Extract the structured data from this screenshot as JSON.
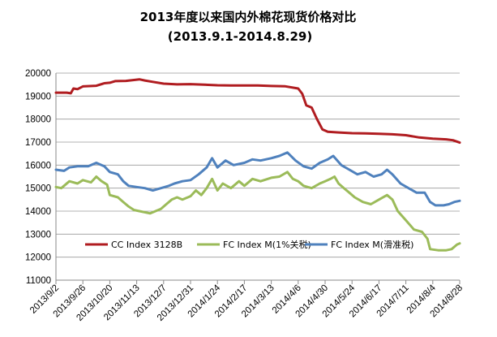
{
  "chart_data": {
    "type": "line",
    "title": "2013年度以来国内外棉花现货价格对比",
    "subtitle": "(2013.9.1-2014.8.29)",
    "xlabel": "",
    "ylabel": "",
    "ylim": [
      11000,
      20000
    ],
    "yticks": [
      11000,
      12000,
      13000,
      14000,
      15000,
      16000,
      17000,
      18000,
      19000,
      20000
    ],
    "categories": [
      "2013/9/2",
      "2013/9/26",
      "2013/10/20",
      "2013/11/13",
      "2013/12/7",
      "2013/12/31",
      "2014/1/24",
      "2014/2/17",
      "2014/3/13",
      "2014/4/6",
      "2014/4/30",
      "2014/5/24",
      "2014/6/17",
      "2014/7/11",
      "2014/8/4",
      "2014/8/28"
    ],
    "grid": true,
    "legend_position": "bottom-inside",
    "x_index_max": 15,
    "series": [
      {
        "name": "CC Index 3128B",
        "color": "#b01c20",
        "points": [
          [
            0,
            19150
          ],
          [
            0.4,
            19150
          ],
          [
            0.55,
            19120
          ],
          [
            0.65,
            19330
          ],
          [
            0.8,
            19300
          ],
          [
            1.0,
            19420
          ],
          [
            1.5,
            19450
          ],
          [
            1.8,
            19560
          ],
          [
            2.0,
            19580
          ],
          [
            2.2,
            19650
          ],
          [
            2.6,
            19660
          ],
          [
            2.9,
            19700
          ],
          [
            3.1,
            19730
          ],
          [
            3.3,
            19680
          ],
          [
            3.6,
            19620
          ],
          [
            4.0,
            19540
          ],
          [
            4.5,
            19510
          ],
          [
            5.0,
            19520
          ],
          [
            5.5,
            19500
          ],
          [
            6.0,
            19470
          ],
          [
            6.5,
            19460
          ],
          [
            7.0,
            19460
          ],
          [
            7.5,
            19460
          ],
          [
            8.0,
            19440
          ],
          [
            8.5,
            19430
          ],
          [
            9.0,
            19330
          ],
          [
            9.15,
            19100
          ],
          [
            9.3,
            18600
          ],
          [
            9.5,
            18500
          ],
          [
            9.7,
            18000
          ],
          [
            9.9,
            17550
          ],
          [
            10.1,
            17450
          ],
          [
            10.5,
            17420
          ],
          [
            11.0,
            17390
          ],
          [
            11.5,
            17380
          ],
          [
            12.0,
            17360
          ],
          [
            12.5,
            17340
          ],
          [
            13.0,
            17300
          ],
          [
            13.5,
            17200
          ],
          [
            14.0,
            17150
          ],
          [
            14.5,
            17120
          ],
          [
            14.75,
            17080
          ],
          [
            15.0,
            16980
          ]
        ]
      },
      {
        "name": "FC Index M(1%关税)",
        "color": "#9bbb59",
        "points": [
          [
            0,
            15050
          ],
          [
            0.2,
            15000
          ],
          [
            0.3,
            15100
          ],
          [
            0.5,
            15300
          ],
          [
            0.8,
            15200
          ],
          [
            1.0,
            15350
          ],
          [
            1.3,
            15250
          ],
          [
            1.5,
            15500
          ],
          [
            1.7,
            15300
          ],
          [
            1.9,
            15150
          ],
          [
            2.0,
            14700
          ],
          [
            2.3,
            14600
          ],
          [
            2.5,
            14400
          ],
          [
            2.7,
            14200
          ],
          [
            2.9,
            14050
          ],
          [
            3.1,
            14000
          ],
          [
            3.3,
            13950
          ],
          [
            3.5,
            13900
          ],
          [
            3.7,
            14000
          ],
          [
            3.9,
            14100
          ],
          [
            4.1,
            14300
          ],
          [
            4.3,
            14500
          ],
          [
            4.5,
            14600
          ],
          [
            4.7,
            14500
          ],
          [
            5.0,
            14650
          ],
          [
            5.2,
            14900
          ],
          [
            5.4,
            14700
          ],
          [
            5.6,
            15000
          ],
          [
            5.8,
            15400
          ],
          [
            6.0,
            14900
          ],
          [
            6.2,
            15200
          ],
          [
            6.5,
            15000
          ],
          [
            6.8,
            15300
          ],
          [
            7.0,
            15100
          ],
          [
            7.3,
            15400
          ],
          [
            7.6,
            15300
          ],
          [
            8.0,
            15450
          ],
          [
            8.3,
            15500
          ],
          [
            8.6,
            15700
          ],
          [
            8.8,
            15400
          ],
          [
            9.0,
            15300
          ],
          [
            9.2,
            15100
          ],
          [
            9.5,
            15000
          ],
          [
            9.8,
            15200
          ],
          [
            10.0,
            15300
          ],
          [
            10.2,
            15400
          ],
          [
            10.35,
            15500
          ],
          [
            10.5,
            15200
          ],
          [
            10.7,
            15000
          ],
          [
            10.9,
            14800
          ],
          [
            11.1,
            14600
          ],
          [
            11.4,
            14400
          ],
          [
            11.7,
            14300
          ],
          [
            12.0,
            14500
          ],
          [
            12.3,
            14700
          ],
          [
            12.5,
            14500
          ],
          [
            12.7,
            14000
          ],
          [
            13.0,
            13600
          ],
          [
            13.3,
            13200
          ],
          [
            13.6,
            13100
          ],
          [
            13.8,
            12800
          ],
          [
            13.9,
            12350
          ],
          [
            14.2,
            12300
          ],
          [
            14.5,
            12300
          ],
          [
            14.7,
            12350
          ],
          [
            14.9,
            12550
          ],
          [
            15.0,
            12600
          ]
        ]
      },
      {
        "name": "FC Index M(滑准税)",
        "color": "#4f81bd",
        "points": [
          [
            0,
            15800
          ],
          [
            0.3,
            15750
          ],
          [
            0.5,
            15900
          ],
          [
            0.8,
            15950
          ],
          [
            1.2,
            15950
          ],
          [
            1.5,
            16100
          ],
          [
            1.8,
            15950
          ],
          [
            2.0,
            15700
          ],
          [
            2.3,
            15600
          ],
          [
            2.5,
            15300
          ],
          [
            2.7,
            15100
          ],
          [
            3.0,
            15050
          ],
          [
            3.3,
            15000
          ],
          [
            3.6,
            14900
          ],
          [
            3.9,
            15000
          ],
          [
            4.2,
            15100
          ],
          [
            4.4,
            15200
          ],
          [
            4.7,
            15300
          ],
          [
            5.0,
            15350
          ],
          [
            5.3,
            15600
          ],
          [
            5.6,
            15900
          ],
          [
            5.8,
            16300
          ],
          [
            6.0,
            15900
          ],
          [
            6.3,
            16200
          ],
          [
            6.6,
            16000
          ],
          [
            7.0,
            16100
          ],
          [
            7.3,
            16250
          ],
          [
            7.6,
            16200
          ],
          [
            8.0,
            16300
          ],
          [
            8.3,
            16400
          ],
          [
            8.6,
            16550
          ],
          [
            8.9,
            16200
          ],
          [
            9.2,
            15950
          ],
          [
            9.5,
            15850
          ],
          [
            9.8,
            16100
          ],
          [
            10.1,
            16250
          ],
          [
            10.3,
            16400
          ],
          [
            10.6,
            16000
          ],
          [
            10.9,
            15800
          ],
          [
            11.2,
            15600
          ],
          [
            11.5,
            15700
          ],
          [
            11.8,
            15500
          ],
          [
            12.1,
            15600
          ],
          [
            12.3,
            15800
          ],
          [
            12.5,
            15600
          ],
          [
            12.8,
            15200
          ],
          [
            13.1,
            15000
          ],
          [
            13.4,
            14800
          ],
          [
            13.7,
            14800
          ],
          [
            13.9,
            14400
          ],
          [
            14.1,
            14250
          ],
          [
            14.4,
            14250
          ],
          [
            14.6,
            14300
          ],
          [
            14.8,
            14400
          ],
          [
            15.0,
            14450
          ]
        ]
      }
    ]
  }
}
